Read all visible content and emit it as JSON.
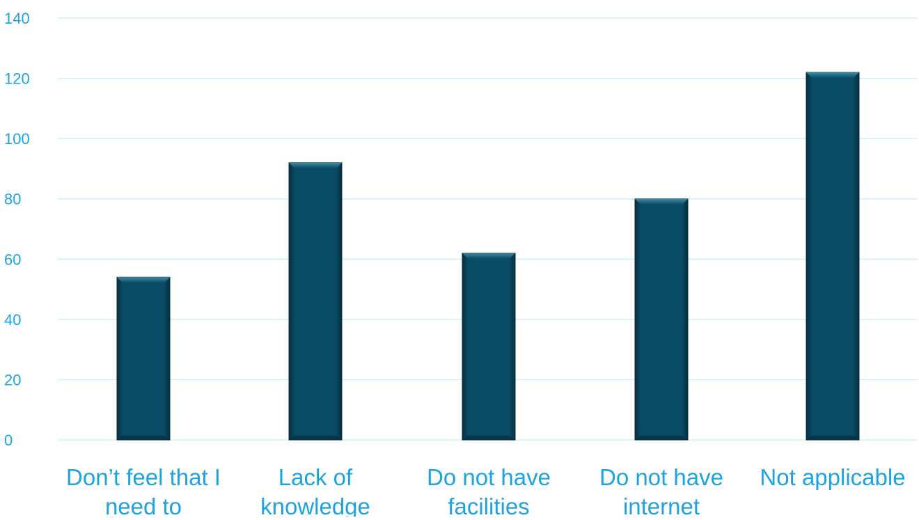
{
  "chart_data": {
    "type": "bar",
    "title": "",
    "xlabel": "",
    "ylabel": "",
    "categories": [
      [
        "Don’t feel that I",
        "need to"
      ],
      [
        "Lack of",
        "knowledge"
      ],
      [
        "Do not have",
        "facilities"
      ],
      [
        "Do not have",
        "internet"
      ],
      [
        "Not applicable"
      ]
    ],
    "values": [
      54,
      92,
      62,
      80,
      122
    ],
    "ylim": [
      0,
      140
    ],
    "yticks": [
      "0",
      "20",
      "40",
      "60",
      "80",
      "100",
      "120",
      "140"
    ],
    "grid": true,
    "legend": "none"
  },
  "colors": {
    "bar": "#0a4c66",
    "bar_dark": "#062f40",
    "bar_light": "#3f8aa3",
    "gridline": "#c9ecf6",
    "axis_text": "#1fa3df"
  }
}
